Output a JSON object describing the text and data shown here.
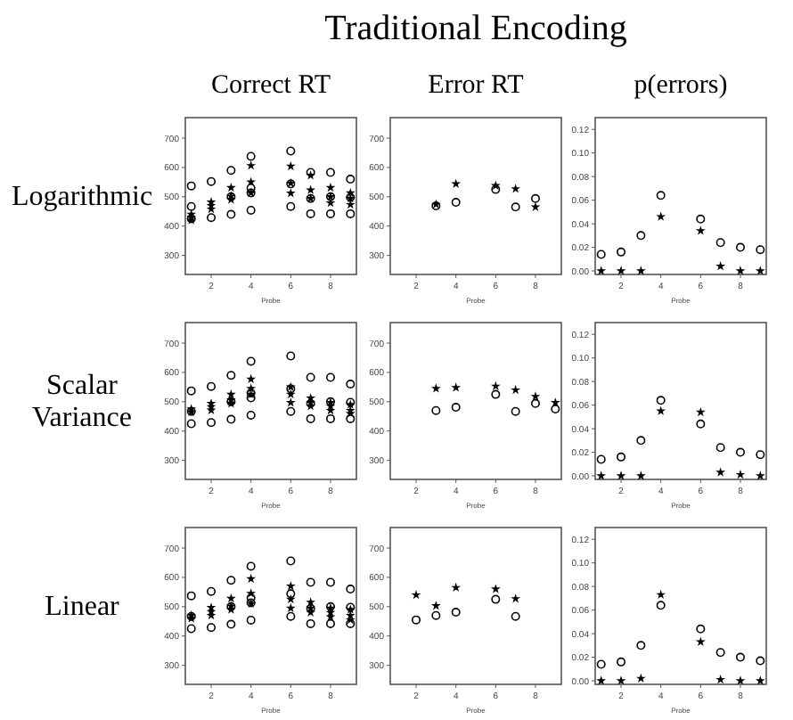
{
  "chart_data": [
    {
      "type": "scatter",
      "title": "Correct RT",
      "ylabel": "Logarithmic",
      "xlabel": "Probe",
      "annotations": [
        "Traditional Encoding"
      ],
      "xlim": [
        0.7,
        9.3
      ],
      "ylim": [
        235,
        770
      ],
      "xticks": [
        2,
        4,
        6,
        8
      ],
      "yticks": [
        300,
        400,
        500,
        600,
        700
      ],
      "series": [
        {
          "color": "#000000",
          "marker": "circle",
          "x": [
            1,
            1,
            1,
            2,
            2,
            3,
            3,
            3,
            4,
            4,
            4,
            4,
            6,
            6,
            6,
            7,
            7,
            7,
            8,
            8,
            8,
            9,
            9,
            9
          ],
          "values": [
            537,
            467,
            425,
            552,
            429,
            590,
            500,
            440,
            638,
            530,
            513,
            454,
            656,
            544,
            467,
            583,
            494,
            442,
            583,
            500,
            442,
            560,
            498,
            442
          ]
        },
        {
          "color": "#000000",
          "marker": "star",
          "x": [
            1,
            1,
            1,
            2,
            2,
            2,
            3,
            3,
            3,
            4,
            4,
            4,
            6,
            6,
            6,
            7,
            7,
            7,
            8,
            8,
            8,
            9,
            9,
            9
          ],
          "values": [
            440,
            430,
            420,
            482,
            470,
            458,
            531,
            502,
            490,
            606,
            550,
            513,
            604,
            546,
            512,
            573,
            523,
            494,
            531,
            500,
            479,
            513,
            494,
            473
          ]
        }
      ]
    },
    {
      "type": "scatter",
      "title": "Error RT",
      "xlabel": "Probe",
      "xlim": [
        0.7,
        9.3
      ],
      "ylim": [
        235,
        770
      ],
      "xticks": [
        2,
        4,
        6,
        8
      ],
      "yticks": [
        300,
        400,
        500,
        600,
        700
      ],
      "series": [
        {
          "color": "#000000",
          "marker": "circle",
          "x": [
            3,
            4,
            6,
            7,
            8
          ],
          "values": [
            469,
            481,
            525,
            465,
            494
          ]
        },
        {
          "color": "#000000",
          "marker": "star",
          "x": [
            3,
            4,
            6,
            7,
            8
          ],
          "values": [
            474,
            544,
            538,
            527,
            465
          ]
        }
      ]
    },
    {
      "type": "scatter",
      "title": "p(errors)",
      "xlabel": "Probe",
      "xlim": [
        0.7,
        9.3
      ],
      "ylim": [
        -0.003,
        0.13
      ],
      "xticks": [
        2,
        4,
        6,
        8
      ],
      "yticks": [
        {
          "value": 0,
          "label": "0.00"
        },
        {
          "value": 0.02,
          "label": "0.02"
        },
        {
          "value": 0.04,
          "label": "0.04"
        },
        {
          "value": 0.06,
          "label": "0.06"
        },
        {
          "value": 0.08,
          "label": "0.08"
        },
        {
          "value": 0.1,
          "label": "0.10"
        },
        {
          "value": 0.12,
          "label": "0.12"
        }
      ],
      "series": [
        {
          "color": "#000000",
          "marker": "circle",
          "x": [
            1,
            2,
            3,
            4,
            6,
            7,
            8,
            9
          ],
          "values": [
            0.014,
            0.016,
            0.03,
            0.064,
            0.044,
            0.024,
            0.02,
            0.018
          ]
        },
        {
          "color": "#000000",
          "marker": "star",
          "x": [
            1,
            2,
            3,
            4,
            6,
            7,
            8,
            9
          ],
          "values": [
            0,
            0,
            0,
            0.046,
            0.034,
            0.004,
            0,
            0
          ]
        }
      ]
    },
    {
      "type": "scatter",
      "ylabel": "Scalar Variance",
      "xlabel": "Probe",
      "xlim": [
        0.7,
        9.3
      ],
      "ylim": [
        235,
        770
      ],
      "xticks": [
        2,
        4,
        6,
        8
      ],
      "yticks": [
        300,
        400,
        500,
        600,
        700
      ],
      "series": [
        {
          "color": "#000000",
          "marker": "circle",
          "x": [
            1,
            1,
            1,
            2,
            2,
            3,
            3,
            3,
            4,
            4,
            4,
            4,
            6,
            6,
            6,
            7,
            7,
            7,
            8,
            8,
            8,
            9,
            9,
            9
          ],
          "values": [
            537,
            467,
            425,
            552,
            429,
            590,
            500,
            440,
            638,
            530,
            513,
            454,
            656,
            544,
            467,
            583,
            494,
            442,
            583,
            500,
            442,
            560,
            498,
            442
          ]
        },
        {
          "color": "#000000",
          "marker": "star",
          "x": [
            1,
            1,
            2,
            2,
            2,
            3,
            3,
            3,
            4,
            4,
            4,
            6,
            6,
            6,
            7,
            7,
            7,
            8,
            8,
            8,
            9,
            9,
            9
          ],
          "values": [
            475,
            465,
            494,
            483,
            471,
            525,
            506,
            494,
            577,
            545,
            525,
            550,
            525,
            497,
            512,
            497,
            485,
            497,
            485,
            470,
            490,
            470,
            460
          ]
        }
      ]
    },
    {
      "type": "scatter",
      "xlabel": "Probe",
      "xlim": [
        0.7,
        9.3
      ],
      "ylim": [
        235,
        770
      ],
      "xticks": [
        2,
        4,
        6,
        8
      ],
      "yticks": [
        300,
        400,
        500,
        600,
        700
      ],
      "series": [
        {
          "color": "#000000",
          "marker": "circle",
          "x": [
            3,
            4,
            6,
            7,
            8,
            9
          ],
          "values": [
            470,
            481,
            525,
            467,
            494,
            475
          ]
        },
        {
          "color": "#000000",
          "marker": "star",
          "x": [
            3,
            4,
            6,
            7,
            8,
            9
          ],
          "values": [
            545,
            548,
            553,
            540,
            518,
            497
          ]
        }
      ]
    },
    {
      "type": "scatter",
      "xlabel": "Probe",
      "xlim": [
        0.7,
        9.3
      ],
      "ylim": [
        -0.003,
        0.13
      ],
      "xticks": [
        2,
        4,
        6,
        8
      ],
      "yticks": [
        {
          "value": 0,
          "label": "0.00"
        },
        {
          "value": 0.02,
          "label": "0.02"
        },
        {
          "value": 0.04,
          "label": "0.04"
        },
        {
          "value": 0.06,
          "label": "0.06"
        },
        {
          "value": 0.08,
          "label": "0.08"
        },
        {
          "value": 0.1,
          "label": "0.10"
        },
        {
          "value": 0.12,
          "label": "0.12"
        }
      ],
      "series": [
        {
          "color": "#000000",
          "marker": "circle",
          "x": [
            1,
            2,
            3,
            4,
            6,
            7,
            8,
            9
          ],
          "values": [
            0.014,
            0.016,
            0.03,
            0.064,
            0.044,
            0.024,
            0.02,
            0.018
          ]
        },
        {
          "color": "#000000",
          "marker": "star",
          "x": [
            1,
            2,
            3,
            4,
            6,
            7,
            8,
            9
          ],
          "values": [
            0,
            0,
            0,
            0.055,
            0.054,
            0.003,
            0.001,
            0
          ]
        }
      ]
    },
    {
      "type": "scatter",
      "ylabel": "Linear",
      "xlabel": "Probe",
      "xlim": [
        0.7,
        9.3
      ],
      "ylim": [
        235,
        770
      ],
      "xticks": [
        2,
        4,
        6,
        8
      ],
      "yticks": [
        300,
        400,
        500,
        600,
        700
      ],
      "series": [
        {
          "color": "#000000",
          "marker": "circle",
          "x": [
            1,
            1,
            1,
            2,
            2,
            3,
            3,
            3,
            4,
            4,
            4,
            4,
            6,
            6,
            6,
            7,
            7,
            7,
            8,
            8,
            8,
            9,
            9,
            9
          ],
          "values": [
            537,
            467,
            425,
            552,
            429,
            590,
            500,
            440,
            638,
            530,
            513,
            454,
            656,
            544,
            467,
            583,
            494,
            442,
            583,
            500,
            442,
            560,
            498,
            442
          ]
        },
        {
          "color": "#000000",
          "marker": "star",
          "x": [
            1,
            1,
            2,
            2,
            2,
            3,
            3,
            3,
            4,
            4,
            4,
            6,
            6,
            6,
            7,
            7,
            7,
            8,
            8,
            8,
            9,
            9,
            9
          ],
          "values": [
            470,
            460,
            497,
            483,
            470,
            528,
            502,
            490,
            595,
            545,
            510,
            570,
            525,
            495,
            515,
            495,
            480,
            495,
            480,
            465,
            490,
            470,
            455
          ]
        }
      ]
    },
    {
      "type": "scatter",
      "xlabel": "Probe",
      "xlim": [
        0.7,
        9.3
      ],
      "ylim": [
        235,
        770
      ],
      "xticks": [
        2,
        4,
        6,
        8
      ],
      "yticks": [
        300,
        400,
        500,
        600,
        700
      ],
      "series": [
        {
          "color": "#000000",
          "marker": "circle",
          "x": [
            2,
            3,
            4,
            6,
            7
          ],
          "values": [
            455,
            470,
            481,
            525,
            467
          ]
        },
        {
          "color": "#000000",
          "marker": "star",
          "x": [
            2,
            3,
            4,
            6,
            7
          ],
          "values": [
            540,
            503,
            565,
            560,
            527
          ]
        }
      ]
    },
    {
      "type": "scatter",
      "xlabel": "Probe",
      "xlim": [
        0.7,
        9.3
      ],
      "ylim": [
        -0.003,
        0.13
      ],
      "xticks": [
        2,
        4,
        6,
        8
      ],
      "yticks": [
        {
          "value": 0,
          "label": "0.00"
        },
        {
          "value": 0.02,
          "label": "0.02"
        },
        {
          "value": 0.04,
          "label": "0.04"
        },
        {
          "value": 0.06,
          "label": "0.06"
        },
        {
          "value": 0.08,
          "label": "0.08"
        },
        {
          "value": 0.1,
          "label": "0.10"
        },
        {
          "value": 0.12,
          "label": "0.12"
        }
      ],
      "series": [
        {
          "color": "#000000",
          "marker": "circle",
          "x": [
            1,
            2,
            3,
            4,
            6,
            7,
            8,
            9
          ],
          "values": [
            0.014,
            0.016,
            0.03,
            0.064,
            0.044,
            0.024,
            0.02,
            0.017
          ]
        },
        {
          "color": "#000000",
          "marker": "star",
          "x": [
            1,
            2,
            3,
            4,
            6,
            7,
            8,
            9
          ],
          "values": [
            0,
            0,
            0.002,
            0.073,
            0.033,
            0.001,
            0,
            0
          ]
        }
      ]
    }
  ]
}
